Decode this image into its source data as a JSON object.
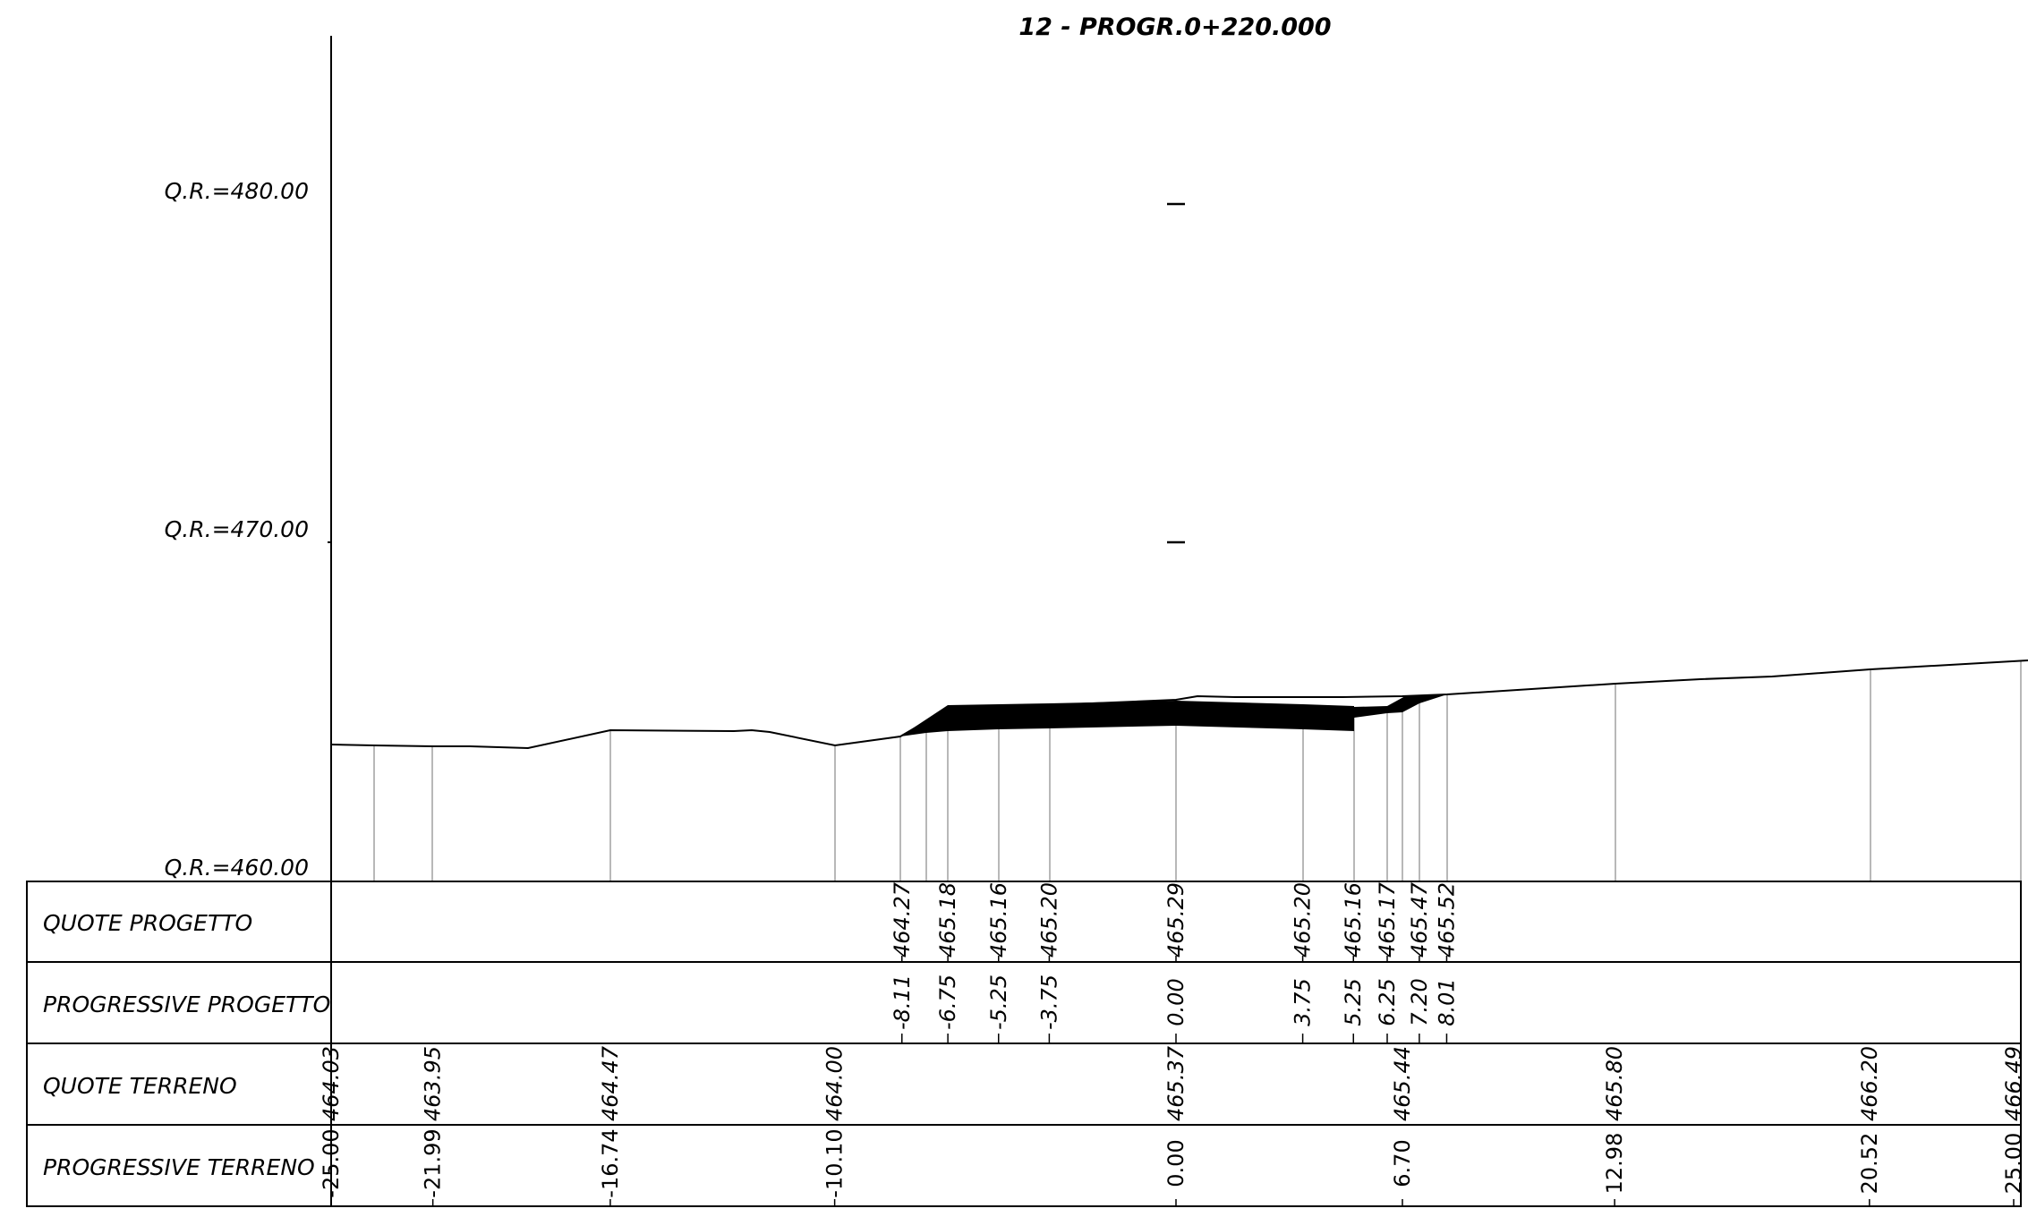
{
  "title": "12 - PROGR.0+220.000",
  "reference_levels": [
    "Q.R.=480.00",
    "Q.R.=470.00",
    "Q.R.=460.00"
  ],
  "rows": {
    "quote_progetto": "QUOTE PROGETTO",
    "progressive_progetto": "PROGRESSIVE PROGETTO",
    "quote_terreno": "QUOTE TERRENO",
    "progressive_terreno": "PROGRESSIVE TERRENO"
  },
  "progetto": {
    "offsets": [
      -8.11,
      -6.75,
      -5.25,
      -3.75,
      0.0,
      3.75,
      5.25,
      6.25,
      7.2,
      8.01
    ],
    "offset_labels": [
      "-8.11",
      "-6.75",
      "-5.25",
      "-3.75",
      "0.00",
      "3.75",
      "5.25",
      "6.25",
      "7.20",
      "8.01"
    ],
    "elevation_labels": [
      "464.27",
      "465.18",
      "465.16",
      "465.20",
      "465.29",
      "465.20",
      "465.16",
      "465.17",
      "465.47",
      "465.52"
    ]
  },
  "terreno": {
    "offsets": [
      -25.0,
      -21.99,
      -16.74,
      -10.1,
      0.0,
      6.7,
      12.98,
      20.52,
      25.0
    ],
    "offset_labels": [
      "-25.00",
      "-21.99",
      "-16.74",
      "-10.10",
      "0.00",
      "6.70",
      "12.98",
      "20.52",
      "25.00"
    ],
    "elevation_labels": [
      "464.03",
      "463.95",
      "464.47",
      "464.00",
      "465.37",
      "465.44",
      "465.80",
      "466.20",
      "466.49"
    ]
  }
}
